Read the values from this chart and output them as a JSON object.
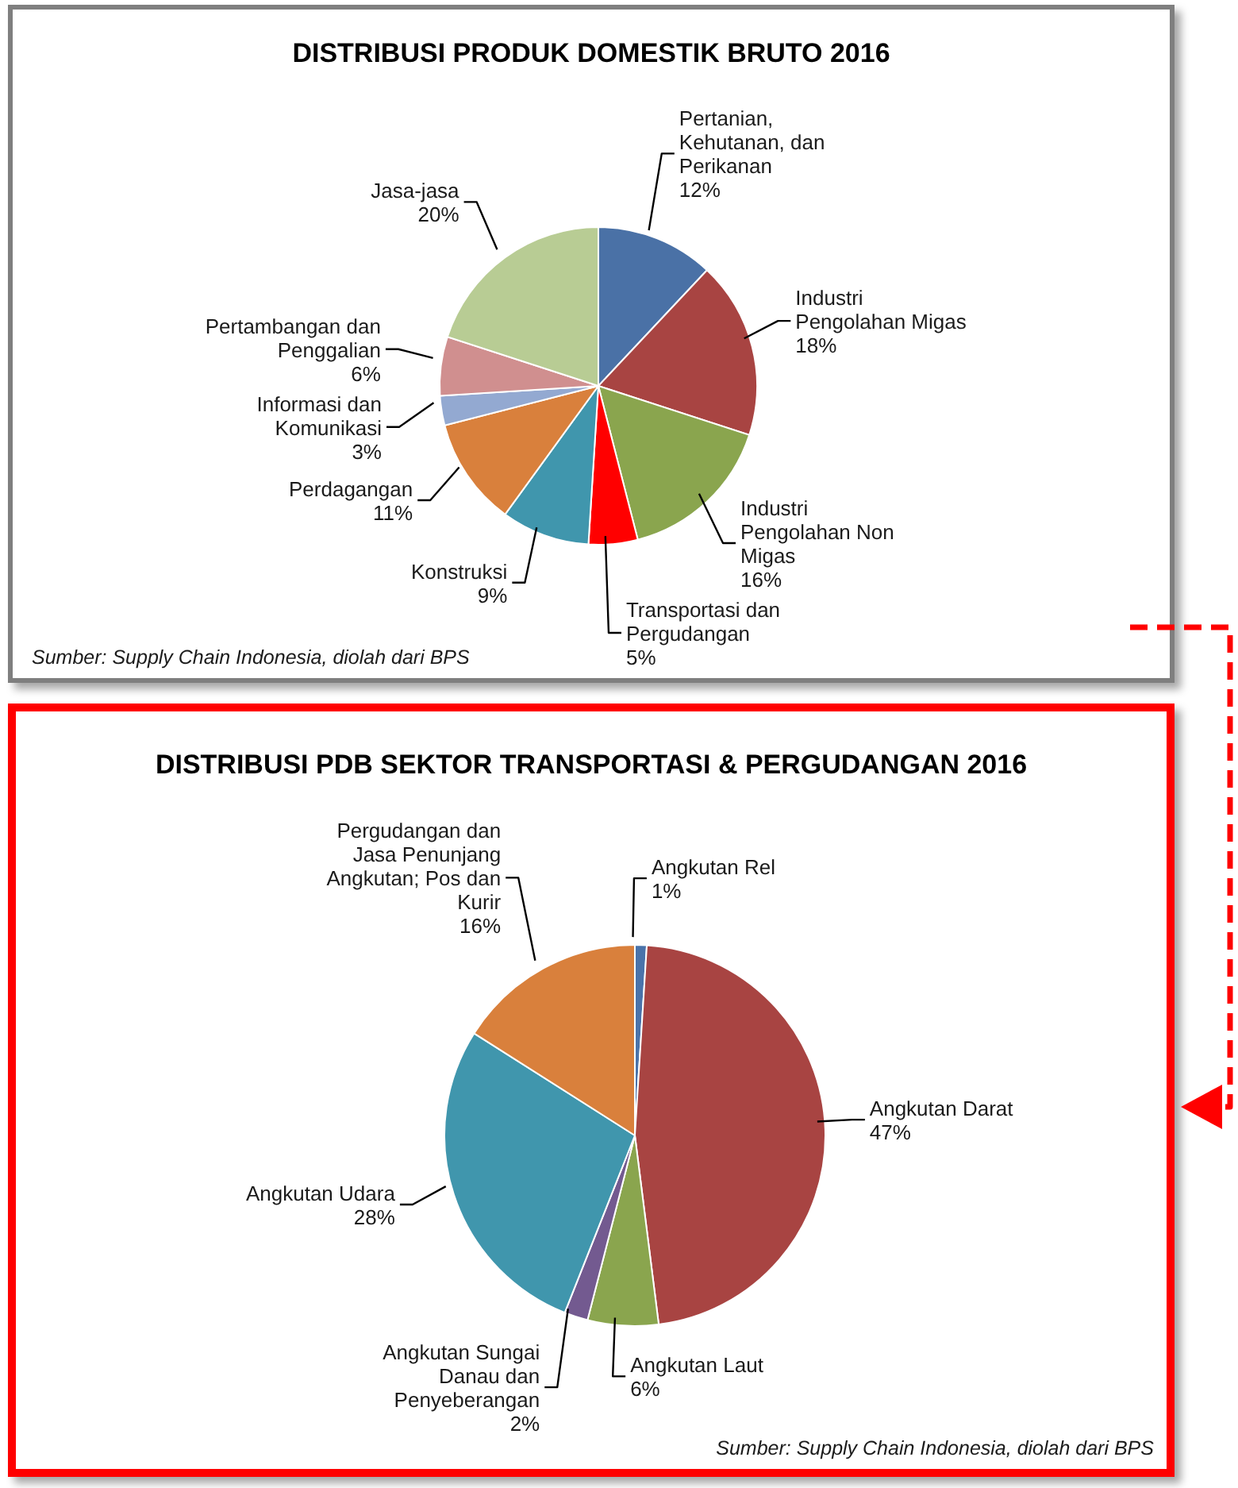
{
  "chart_data": [
    {
      "type": "pie",
      "title": "DISTRIBUSI PRODUK DOMESTIK  BRUTO 2016",
      "categories": [
        "Pertanian, Kehutanan, dan Perikanan",
        "Industri Pengolahan Migas",
        "Industri Pengolahan Non Migas",
        "Transportasi dan Pergudangan",
        "Konstruksi",
        "Perdagangan",
        "Informasi dan Komunikasi",
        "Pertambangan dan Penggalian",
        "Jasa-jasa"
      ],
      "values": [
        12,
        18,
        16,
        5,
        9,
        11,
        3,
        6,
        20
      ],
      "value_labels": [
        "12%",
        "18%",
        "16%",
        "5%",
        "9%",
        "11%",
        "3%",
        "6%",
        "20%"
      ],
      "colors": [
        "#4a71a6",
        "#a84442",
        "#8aa54e",
        "#ff0000",
        "#4096ad",
        "#d9803c",
        "#93a9d1",
        "#d08f8f",
        "#b8cc94"
      ],
      "annotations": [
        "Sumber: Supply Chain Indonesia, diolah dari BPS"
      ]
    },
    {
      "type": "pie",
      "title": "DISTRIBUSI PDB SEKTOR TRANSPORTASI & PERGUDANGAN 2016",
      "categories": [
        "Angkutan Rel",
        "Angkutan Darat",
        "Angkutan Laut",
        "Angkutan Sungai Danau dan Penyeberangan",
        "Angkutan Udara",
        "Pergudangan dan Jasa Penunjang Angkutan; Pos dan Kurir"
      ],
      "values": [
        1,
        47,
        6,
        2,
        28,
        16
      ],
      "value_labels": [
        "1%",
        "47%",
        "6%",
        "2%",
        "28%",
        "16%"
      ],
      "colors": [
        "#4a73aa",
        "#a84442",
        "#8aa54e",
        "#735a90",
        "#4096ad",
        "#d9803c"
      ],
      "annotations": [
        "Sumber: Supply Chain Indonesia, diolah dari BPS"
      ]
    }
  ]
}
